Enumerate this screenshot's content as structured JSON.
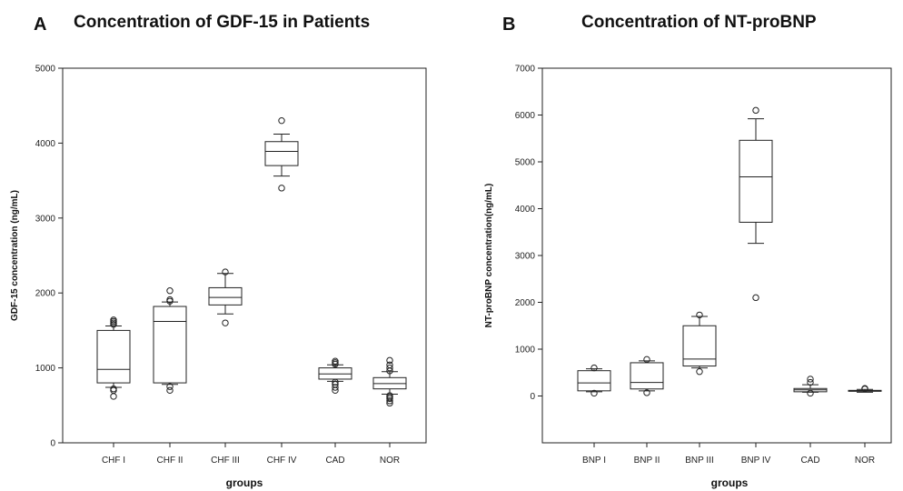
{
  "chart_data": [
    {
      "type": "box",
      "panel": "A",
      "title": "Concentration of GDF-15 in Patients",
      "xlabel": "groups",
      "ylabel": "GDF-15 concentration (ng/mL)",
      "ylim": [
        0,
        5000
      ],
      "yticks": [
        0,
        1000,
        2000,
        3000,
        4000,
        5000
      ],
      "grid": false,
      "categories": [
        "CHF I",
        "CHF II",
        "CHF III",
        "CHF IV",
        "CAD",
        "NOR"
      ],
      "boxes": [
        {
          "min": 740,
          "q1": 800,
          "median": 980,
          "q3": 1500,
          "max": 1560,
          "outliers": [
            620,
            700,
            720,
            1580,
            1600,
            1620,
            1640
          ]
        },
        {
          "min": 780,
          "q1": 800,
          "median": 1620,
          "q3": 1820,
          "max": 1880,
          "outliers": [
            700,
            750,
            1890,
            1910,
            2030
          ]
        },
        {
          "min": 1720,
          "q1": 1840,
          "median": 1940,
          "q3": 2070,
          "max": 2260,
          "outliers": [
            1600,
            2280
          ]
        },
        {
          "min": 3560,
          "q1": 3700,
          "median": 3890,
          "q3": 4020,
          "max": 4120,
          "outliers": [
            3400,
            4300
          ]
        },
        {
          "min": 820,
          "q1": 850,
          "median": 920,
          "q3": 1000,
          "max": 1040,
          "outliers": [
            700,
            740,
            780,
            810,
            1050,
            1070,
            1090
          ]
        },
        {
          "min": 650,
          "q1": 720,
          "median": 790,
          "q3": 870,
          "max": 950,
          "outliers": [
            530,
            560,
            590,
            610,
            630,
            960,
            1000,
            1040,
            1100
          ]
        }
      ]
    },
    {
      "type": "box",
      "panel": "B",
      "title": "Concentration of NT-proBNP",
      "xlabel": "groups",
      "ylabel": "NT-proBNP concentration(ng/mL)",
      "ylim": [
        -1000,
        7000
      ],
      "yticks": [
        0,
        1000,
        2000,
        3000,
        4000,
        5000,
        6000,
        7000
      ],
      "grid": false,
      "categories": [
        "BNP I",
        "BNP II",
        "BNP III",
        "BNP IV",
        "CAD",
        "NOR"
      ],
      "boxes": [
        {
          "min": 90,
          "q1": 110,
          "median": 280,
          "q3": 540,
          "max": 580,
          "outliers": [
            60,
            600
          ]
        },
        {
          "min": 110,
          "q1": 150,
          "median": 290,
          "q3": 710,
          "max": 750,
          "outliers": [
            70,
            780
          ]
        },
        {
          "min": 600,
          "q1": 640,
          "median": 790,
          "q3": 1500,
          "max": 1700,
          "outliers": [
            520,
            1730
          ]
        },
        {
          "min": 3260,
          "q1": 3710,
          "median": 4680,
          "q3": 5460,
          "max": 5920,
          "outliers": [
            2100,
            6100
          ]
        },
        {
          "min": 80,
          "q1": 90,
          "median": 130,
          "q3": 160,
          "max": 240,
          "outliers": [
            60,
            290,
            360
          ]
        },
        {
          "min": 80,
          "q1": 100,
          "median": 110,
          "q3": 120,
          "max": 140,
          "outliers": [
            150,
            160
          ]
        }
      ]
    }
  ]
}
